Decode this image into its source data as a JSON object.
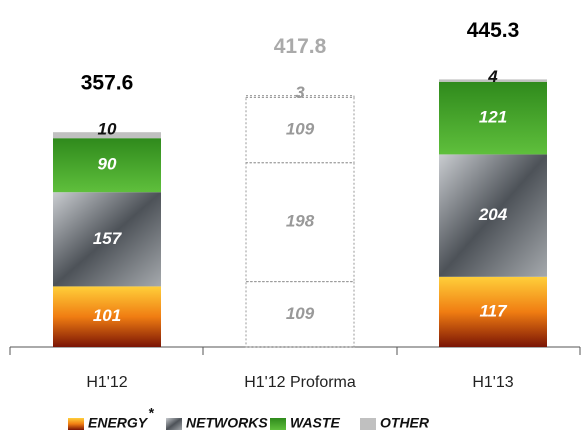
{
  "chart_data": {
    "type": "stacked_bar",
    "categories": [
      "H1'12",
      "H1'12 Proforma",
      "H1'13"
    ],
    "proforma": [
      false,
      true,
      false
    ],
    "totals": [
      357.6,
      417.8,
      445.3
    ],
    "series": [
      {
        "name": "ENERGY",
        "color": "#e2601c",
        "values": [
          101,
          109,
          117
        ]
      },
      {
        "name": "NETWORKS",
        "color": "#7d8288",
        "values": [
          157,
          198,
          204
        ]
      },
      {
        "name": "WASTE",
        "color": "#3e9a2c",
        "values": [
          90,
          109,
          121
        ]
      },
      {
        "name": "OTHER",
        "color": "#c0c0c0",
        "values": [
          10,
          3,
          4
        ]
      }
    ],
    "legend_note": "*"
  }
}
